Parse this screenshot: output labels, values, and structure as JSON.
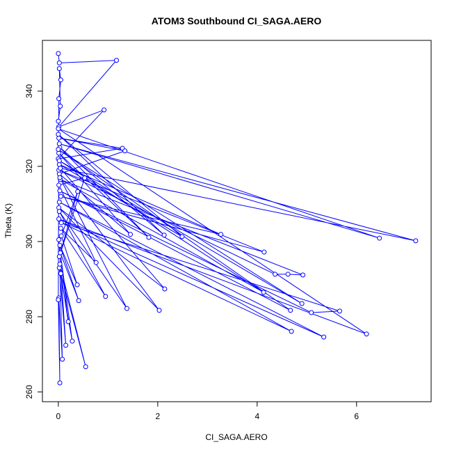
{
  "chart_data": {
    "type": "line",
    "title": "ATOM3 Southbound CI_SAGA.AERO",
    "xlabel": "CI_SAGA.AERO",
    "ylabel": "Theta (K)",
    "color": "#0000ff",
    "markers": true,
    "x": [
      0.0,
      0.02,
      1.17,
      0.01,
      0.92,
      0.0,
      1.29,
      0.01,
      1.34,
      0.02,
      1.45,
      0.01,
      1.82,
      0.03,
      2.13,
      0.0,
      2.49,
      0.02,
      3.27,
      0.05,
      4.14,
      0.01,
      4.36,
      4.62,
      4.92,
      0.04,
      4.13,
      0.02,
      4.9,
      0.0,
      4.67,
      0.03,
      5.09,
      5.66,
      0.06,
      4.69,
      0.02,
      5.34,
      0.01,
      6.2,
      0.0,
      6.46,
      0.02,
      7.19,
      0.04,
      2.14,
      0.01,
      2.03,
      0.03,
      1.38,
      0.02,
      0.95,
      0.05,
      0.76,
      0.01,
      0.53,
      0.02,
      0.39,
      0.06,
      0.38,
      0.03,
      0.41,
      0.04,
      0.28,
      0.02,
      0.15,
      0.01,
      0.2,
      0.05,
      0.55,
      0.03,
      0.08,
      0.01,
      0.03,
      0.0,
      0.01,
      0.05,
      0.02,
      0.04,
      0.0
    ],
    "values": [
      350.0,
      347.5,
      348.2,
      330.5,
      335.0,
      322.0,
      324.8,
      327.5,
      324.1,
      318.0,
      301.9,
      323.5,
      301.1,
      325.0,
      301.7,
      328.5,
      301.3,
      320.5,
      301.9,
      312.0,
      297.2,
      319.0,
      291.3,
      291.3,
      291.1,
      316.5,
      286.5,
      321.5,
      283.5,
      324.5,
      281.7,
      313.5,
      281.1,
      281.5,
      305.0,
      276.1,
      310.5,
      274.6,
      306.0,
      275.4,
      330.0,
      300.9,
      326.0,
      300.2,
      319.5,
      287.4,
      309.0,
      281.7,
      317.0,
      282.2,
      308.0,
      285.4,
      303.5,
      294.4,
      315.0,
      316.9,
      296.0,
      313.3,
      301.5,
      288.5,
      299.0,
      284.3,
      297.0,
      273.5,
      293.0,
      272.4,
      300.5,
      278.7,
      291.5,
      266.7,
      294.0,
      268.7,
      285.0,
      262.4,
      284.5,
      338.0,
      343.0,
      346.0,
      336.0,
      332.0
    ],
    "xlim": [
      -0.32,
      7.5
    ],
    "ylim": [
      257.4,
      353.5
    ],
    "xticks": [
      0,
      2,
      4,
      6
    ],
    "yticks": [
      260,
      280,
      300,
      320,
      340
    ]
  }
}
